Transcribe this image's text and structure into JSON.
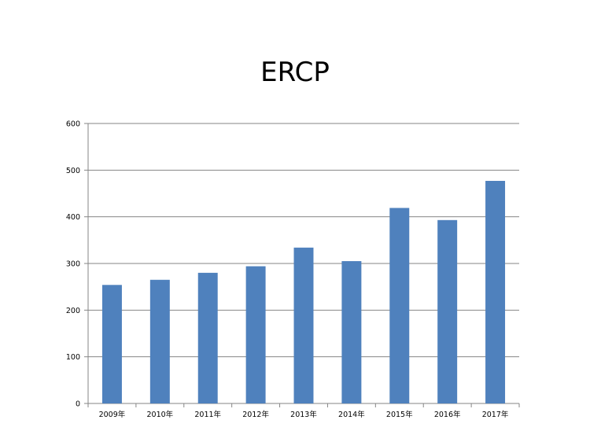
{
  "chart_data": {
    "type": "bar",
    "title": "ERCP",
    "categories": [
      "2009年",
      "2010年",
      "2011年",
      "2012年",
      "2013年",
      "2014年",
      "2015年",
      "2016年",
      "2017年"
    ],
    "values": [
      254,
      265,
      280,
      294,
      334,
      305,
      419,
      393,
      477
    ],
    "ylim": [
      0,
      600
    ],
    "yticks": [
      0,
      100,
      200,
      300,
      400,
      500,
      600
    ],
    "xlabel": "",
    "ylabel": "",
    "grid": true,
    "legend": "none",
    "bar_color": "#4F81BD",
    "gridline_color": "#868686"
  }
}
